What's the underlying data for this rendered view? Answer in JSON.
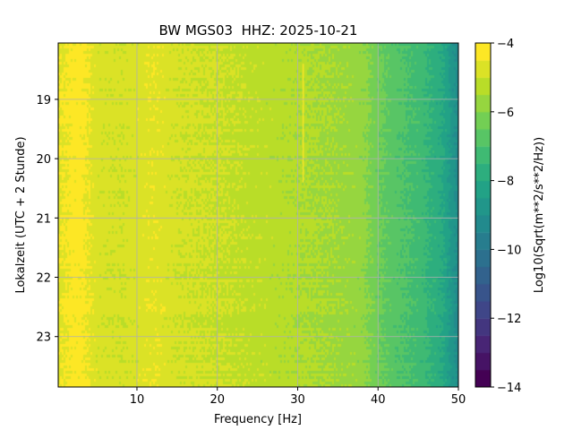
{
  "chart_data": {
    "type": "heatmap",
    "title": "BW MGS03  HHZ: 2025-10-21",
    "xlabel": "Frequency [Hz]",
    "ylabel": "Lokalzeit (UTC + 2 Stunde)",
    "xlim": [
      0.2,
      50
    ],
    "ylim": [
      18.05,
      23.85
    ],
    "y_inverted": true,
    "xticks": [
      10,
      20,
      30,
      40,
      50
    ],
    "yticks": [
      19,
      20,
      21,
      22,
      23
    ],
    "grid": true,
    "colorbar": {
      "label": "Log10(Sqrt(m**2/s**2/Hz))",
      "range": [
        -14,
        -4
      ],
      "ticks": [
        -4,
        -6,
        -8,
        -10,
        -12,
        -14
      ],
      "colormap": "viridis",
      "levels": 20
    },
    "mean_spectrum": {
      "frequency_hz": [
        0.2,
        2,
        3,
        5,
        8,
        12,
        15,
        20,
        25,
        30,
        35,
        38,
        40,
        42,
        45,
        48,
        50
      ],
      "log10_amplitude": [
        -4.6,
        -4.3,
        -4.3,
        -4.8,
        -4.9,
        -4.6,
        -4.9,
        -5.0,
        -5.2,
        -5.4,
        -5.6,
        -5.8,
        -6.4,
        -6.8,
        -7.2,
        -8.0,
        -9.3
      ]
    },
    "annotations": [
      {
        "type": "narrowband line",
        "frequency_hz": 30.6,
        "time_range": [
          18.4,
          20.4
        ]
      }
    ]
  }
}
